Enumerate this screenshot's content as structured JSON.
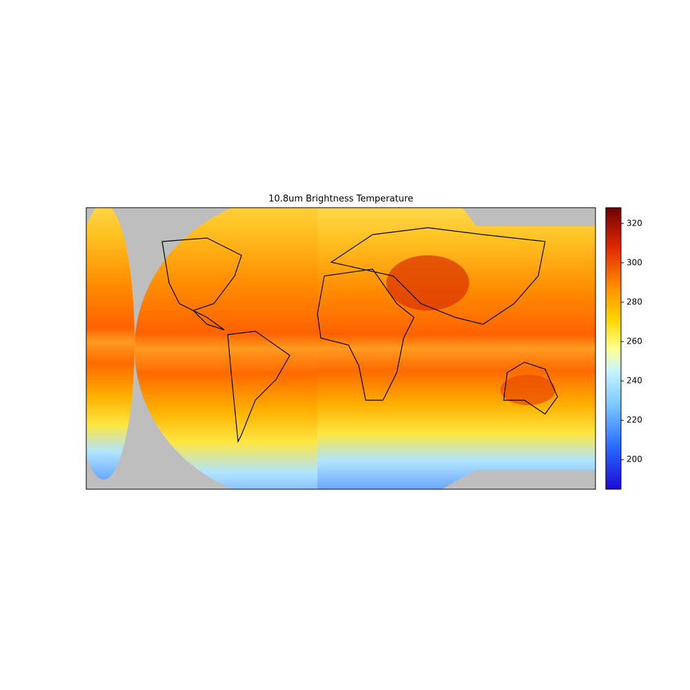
{
  "title": "10.8um Brightness Temperature",
  "colorbar": {
    "lim": [
      185,
      328
    ],
    "ticks": [
      200,
      220,
      240,
      260,
      280,
      300,
      320
    ]
  }
}
